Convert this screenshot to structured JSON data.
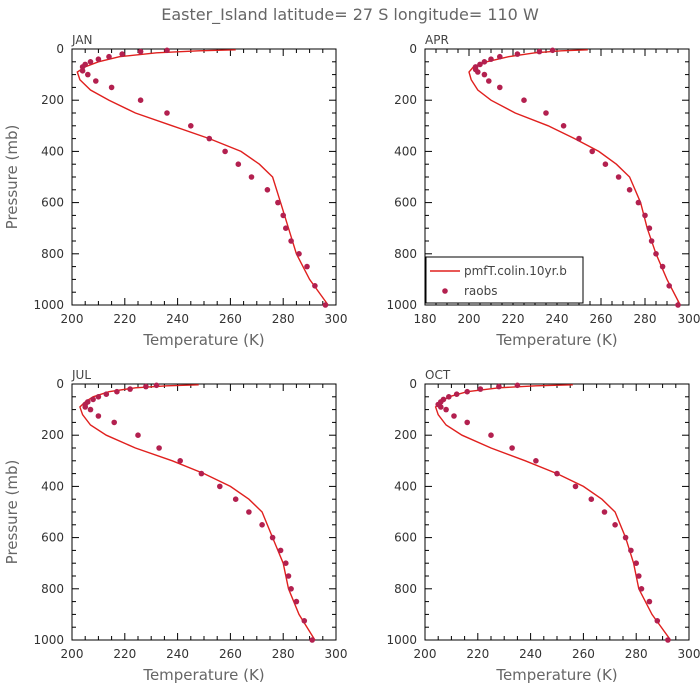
{
  "figure_title": "Easter_Island  latitude= 27 S longitude= 110 W",
  "colors": {
    "model": "#e0201e",
    "obs": "#b3204f",
    "axis": "#000000",
    "text": "#666666"
  },
  "chart_data": [
    {
      "type": "line",
      "panel": "JAN",
      "xlabel": "Temperature (K)",
      "ylabel": "Pressure (mb)",
      "xlim": [
        200,
        300
      ],
      "ylim": [
        1000,
        0
      ],
      "xticks": [
        200,
        220,
        240,
        260,
        280,
        300
      ],
      "yticks": [
        0,
        200,
        400,
        600,
        800,
        1000
      ],
      "series": [
        {
          "name": "pmfT.colin.10yr.b",
          "kind": "line",
          "x": [
            262,
            248,
            232,
            218,
            210,
            205,
            202,
            203,
            207,
            214,
            224,
            238,
            252,
            264,
            271,
            276,
            279,
            282,
            285,
            290,
            297
          ],
          "y": [
            3,
            7,
            15,
            30,
            50,
            70,
            90,
            120,
            160,
            200,
            250,
            300,
            350,
            400,
            450,
            500,
            600,
            700,
            800,
            900,
            1000
          ]
        },
        {
          "name": "raobs",
          "kind": "scatter",
          "x": [
            236,
            226,
            219,
            214,
            210,
            207,
            205,
            204,
            204,
            206,
            209,
            215,
            226,
            236,
            245,
            252,
            258,
            263,
            268,
            274,
            278,
            280,
            281,
            283,
            286,
            289,
            292,
            296
          ],
          "y": [
            5,
            10,
            20,
            30,
            40,
            50,
            60,
            70,
            85,
            100,
            125,
            150,
            200,
            250,
            300,
            350,
            400,
            450,
            500,
            550,
            600,
            650,
            700,
            750,
            800,
            850,
            925,
            1000
          ]
        }
      ],
      "legend": false
    },
    {
      "type": "line",
      "panel": "APR",
      "xlabel": "Temperature (K)",
      "ylabel": "",
      "xlim": [
        180,
        300
      ],
      "ylim": [
        1000,
        0
      ],
      "xticks": [
        180,
        200,
        220,
        240,
        260,
        280,
        300
      ],
      "yticks": [
        0,
        200,
        400,
        600,
        800,
        1000
      ],
      "series": [
        {
          "name": "pmfT.colin.10yr.b",
          "kind": "line",
          "x": [
            254,
            242,
            230,
            218,
            208,
            202,
            200,
            201,
            204,
            210,
            221,
            236,
            248,
            259,
            267,
            273,
            278,
            281,
            285,
            290,
            296
          ],
          "y": [
            3,
            7,
            15,
            30,
            50,
            70,
            90,
            120,
            160,
            200,
            250,
            300,
            350,
            400,
            450,
            500,
            600,
            700,
            800,
            900,
            1000
          ]
        },
        {
          "name": "raobs",
          "kind": "scatter",
          "x": [
            238,
            232,
            222,
            214,
            210,
            207,
            205,
            203,
            203,
            204,
            207,
            209,
            214,
            225,
            235,
            243,
            250,
            256,
            262,
            268,
            273,
            277,
            280,
            282,
            283,
            285,
            288,
            291,
            295
          ],
          "y": [
            5,
            10,
            20,
            30,
            40,
            50,
            60,
            70,
            80,
            90,
            100,
            125,
            150,
            200,
            250,
            300,
            350,
            400,
            450,
            500,
            550,
            600,
            650,
            700,
            750,
            800,
            850,
            925,
            1000
          ]
        }
      ],
      "legend": true,
      "legend_position": "bottom-left"
    },
    {
      "type": "line",
      "panel": "JUL",
      "xlabel": "Temperature (K)",
      "ylabel": "Pressure (mb)",
      "xlim": [
        200,
        300
      ],
      "ylim": [
        1000,
        0
      ],
      "xticks": [
        200,
        220,
        240,
        260,
        280,
        300
      ],
      "yticks": [
        0,
        200,
        400,
        600,
        800,
        1000
      ],
      "series": [
        {
          "name": "pmfT.colin.10yr.b",
          "kind": "line",
          "x": [
            248,
            236,
            224,
            214,
            208,
            205,
            203,
            204,
            207,
            213,
            224,
            238,
            250,
            260,
            267,
            272,
            276,
            280,
            282,
            286,
            292
          ],
          "y": [
            3,
            7,
            15,
            30,
            50,
            70,
            90,
            120,
            160,
            200,
            250,
            300,
            350,
            400,
            450,
            500,
            600,
            700,
            800,
            900,
            1000
          ]
        },
        {
          "name": "raobs",
          "kind": "scatter",
          "x": [
            232,
            228,
            222,
            217,
            213,
            210,
            208,
            206,
            205,
            205,
            207,
            210,
            216,
            225,
            233,
            241,
            249,
            256,
            262,
            267,
            272,
            276,
            279,
            281,
            282,
            283,
            285,
            288,
            291
          ],
          "y": [
            5,
            10,
            20,
            30,
            40,
            50,
            60,
            70,
            80,
            90,
            100,
            125,
            150,
            200,
            250,
            300,
            350,
            400,
            450,
            500,
            550,
            600,
            650,
            700,
            750,
            800,
            850,
            925,
            1000
          ]
        }
      ],
      "legend": false
    },
    {
      "type": "line",
      "panel": "OCT",
      "xlabel": "Temperature (K)",
      "ylabel": "",
      "xlim": [
        200,
        300
      ],
      "ylim": [
        1000,
        0
      ],
      "xticks": [
        200,
        220,
        240,
        260,
        280,
        300
      ],
      "yticks": [
        0,
        200,
        400,
        600,
        800,
        1000
      ],
      "series": [
        {
          "name": "pmfT.colin.10yr.b",
          "kind": "line",
          "x": [
            256,
            242,
            228,
            216,
            209,
            206,
            204,
            205,
            208,
            214,
            225,
            238,
            250,
            260,
            267,
            272,
            276,
            279,
            281,
            286,
            293
          ],
          "y": [
            3,
            7,
            15,
            30,
            50,
            70,
            90,
            120,
            160,
            200,
            250,
            300,
            350,
            400,
            450,
            500,
            600,
            700,
            800,
            900,
            1000
          ]
        },
        {
          "name": "raobs",
          "kind": "scatter",
          "x": [
            235,
            228,
            221,
            216,
            212,
            209,
            207,
            206,
            205,
            206,
            208,
            211,
            216,
            225,
            233,
            242,
            250,
            257,
            263,
            268,
            272,
            276,
            278,
            280,
            281,
            282,
            285,
            288,
            292
          ],
          "y": [
            5,
            10,
            20,
            30,
            40,
            50,
            60,
            70,
            80,
            90,
            100,
            125,
            150,
            200,
            250,
            300,
            350,
            400,
            450,
            500,
            550,
            600,
            650,
            700,
            750,
            800,
            850,
            925,
            1000
          ]
        }
      ],
      "legend": false
    }
  ]
}
